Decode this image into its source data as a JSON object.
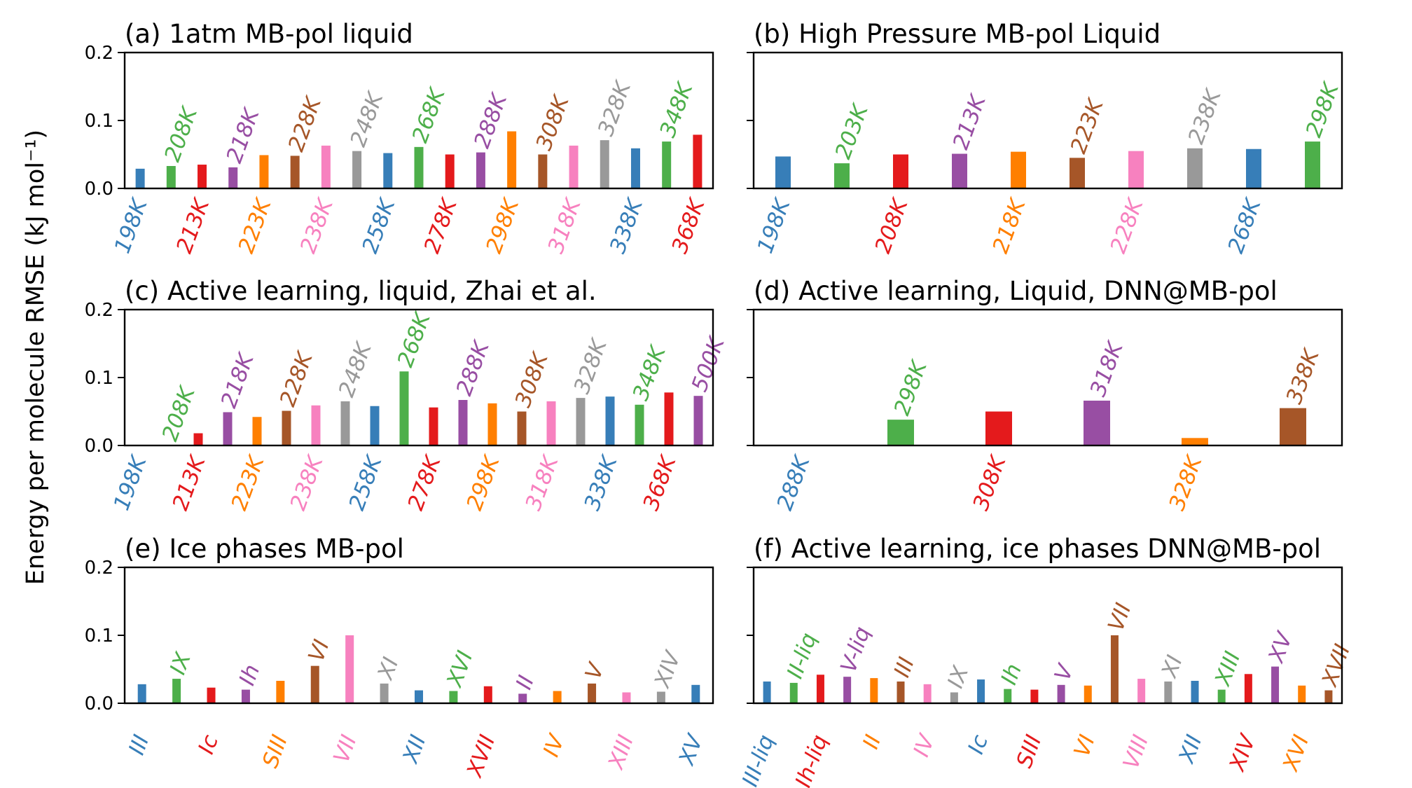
{
  "figure": {
    "ylabel": "Energy per molecule RMSE (kJ mol⁻¹)",
    "colors": [
      "#377eb8",
      "#4daf4a",
      "#e41a1c",
      "#984ea3",
      "#ff7f00",
      "#a65628",
      "#f781bf",
      "#999999"
    ]
  },
  "chart_data": [
    {
      "type": "bar",
      "title": "(a) 1atm MB-pol liquid",
      "ylim": [
        0,
        0.2
      ],
      "yticks": [
        "0.0",
        "0.1",
        "0.2"
      ],
      "categories": [
        "198K",
        "208K",
        "213K",
        "218K",
        "223K",
        "228K",
        "238K",
        "248K",
        "258K",
        "268K",
        "278K",
        "288K",
        "298K",
        "308K",
        "318K",
        "328K",
        "338K",
        "348K",
        "368K"
      ],
      "values": [
        0.029,
        0.033,
        0.035,
        0.031,
        0.049,
        0.048,
        0.063,
        0.055,
        0.052,
        0.061,
        0.05,
        0.053,
        0.084,
        0.05,
        0.063,
        0.071,
        0.059,
        0.069,
        0.079
      ]
    },
    {
      "type": "bar",
      "title": "(b) High Pressure MB-pol Liquid",
      "ylim": [
        0,
        0.2
      ],
      "yticks": [
        "0.0",
        "0.1",
        "0.2"
      ],
      "categories": [
        "198K",
        "203K",
        "208K",
        "213K",
        "218K",
        "223K",
        "228K",
        "238K",
        "268K",
        "298K"
      ],
      "values": [
        0.047,
        0.037,
        0.05,
        0.051,
        0.054,
        0.045,
        0.055,
        0.059,
        0.058,
        0.069
      ]
    },
    {
      "type": "bar",
      "title": "(c) Active learning, liquid, Zhai et al.",
      "ylim": [
        0,
        0.2
      ],
      "yticks": [
        "0.0",
        "0.1",
        "0.2"
      ],
      "categories": [
        "198K",
        "208K",
        "213K",
        "218K",
        "223K",
        "228K",
        "238K",
        "248K",
        "258K",
        "268K",
        "278K",
        "288K",
        "298K",
        "308K",
        "318K",
        "328K",
        "338K",
        "348K",
        "368K",
        "500K"
      ],
      "values": [
        0.0,
        0.0,
        0.018,
        0.049,
        0.042,
        0.051,
        0.059,
        0.065,
        0.058,
        0.109,
        0.056,
        0.067,
        0.062,
        0.05,
        0.065,
        0.07,
        0.072,
        0.06,
        0.078,
        0.073
      ]
    },
    {
      "type": "bar",
      "title": "(d) Active learning, Liquid, DNN@MB-pol",
      "ylim": [
        0,
        0.2
      ],
      "yticks": [
        "0.0",
        "0.1",
        "0.2"
      ],
      "categories": [
        "288K",
        "298K",
        "308K",
        "318K",
        "328K",
        "338K"
      ],
      "values": [
        0.001,
        0.038,
        0.05,
        0.066,
        0.011,
        0.055
      ]
    },
    {
      "type": "bar",
      "title": "(e) Ice phases MB-pol",
      "ylim": [
        0,
        0.2
      ],
      "yticks": [
        "0.0",
        "0.1",
        "0.2"
      ],
      "categories": [
        "III",
        "IX",
        "Ic",
        "Ih",
        "SIII",
        "VI",
        "VII",
        "XI",
        "XII",
        "XVI",
        "XVII",
        "II",
        "IV",
        "V",
        "XIII",
        "XIV",
        "XV"
      ],
      "values": [
        0.028,
        0.036,
        0.023,
        0.02,
        0.033,
        0.055,
        0.1,
        0.029,
        0.019,
        0.018,
        0.025,
        0.014,
        0.018,
        0.029,
        0.016,
        0.017,
        0.027
      ]
    },
    {
      "type": "bar",
      "title": "(f) Active learning, ice phases DNN@MB-pol",
      "ylim": [
        0,
        0.2
      ],
      "yticks": [
        "0.0",
        "0.1",
        "0.2"
      ],
      "categories": [
        "III-liq",
        "II-liq",
        "Ih-liq",
        "V-liq",
        "II",
        "III",
        "IV",
        "IX",
        "Ic",
        "Ih",
        "SIII",
        "V",
        "VI",
        "VII",
        "VIII",
        "XI",
        "XII",
        "XIII",
        "XIV",
        "XV",
        "XVI",
        "XVII"
      ],
      "values": [
        0.032,
        0.03,
        0.042,
        0.039,
        0.037,
        0.032,
        0.028,
        0.016,
        0.035,
        0.021,
        0.02,
        0.027,
        0.026,
        0.1,
        0.036,
        0.032,
        0.033,
        0.02,
        0.043,
        0.054,
        0.026,
        0.019
      ]
    }
  ]
}
